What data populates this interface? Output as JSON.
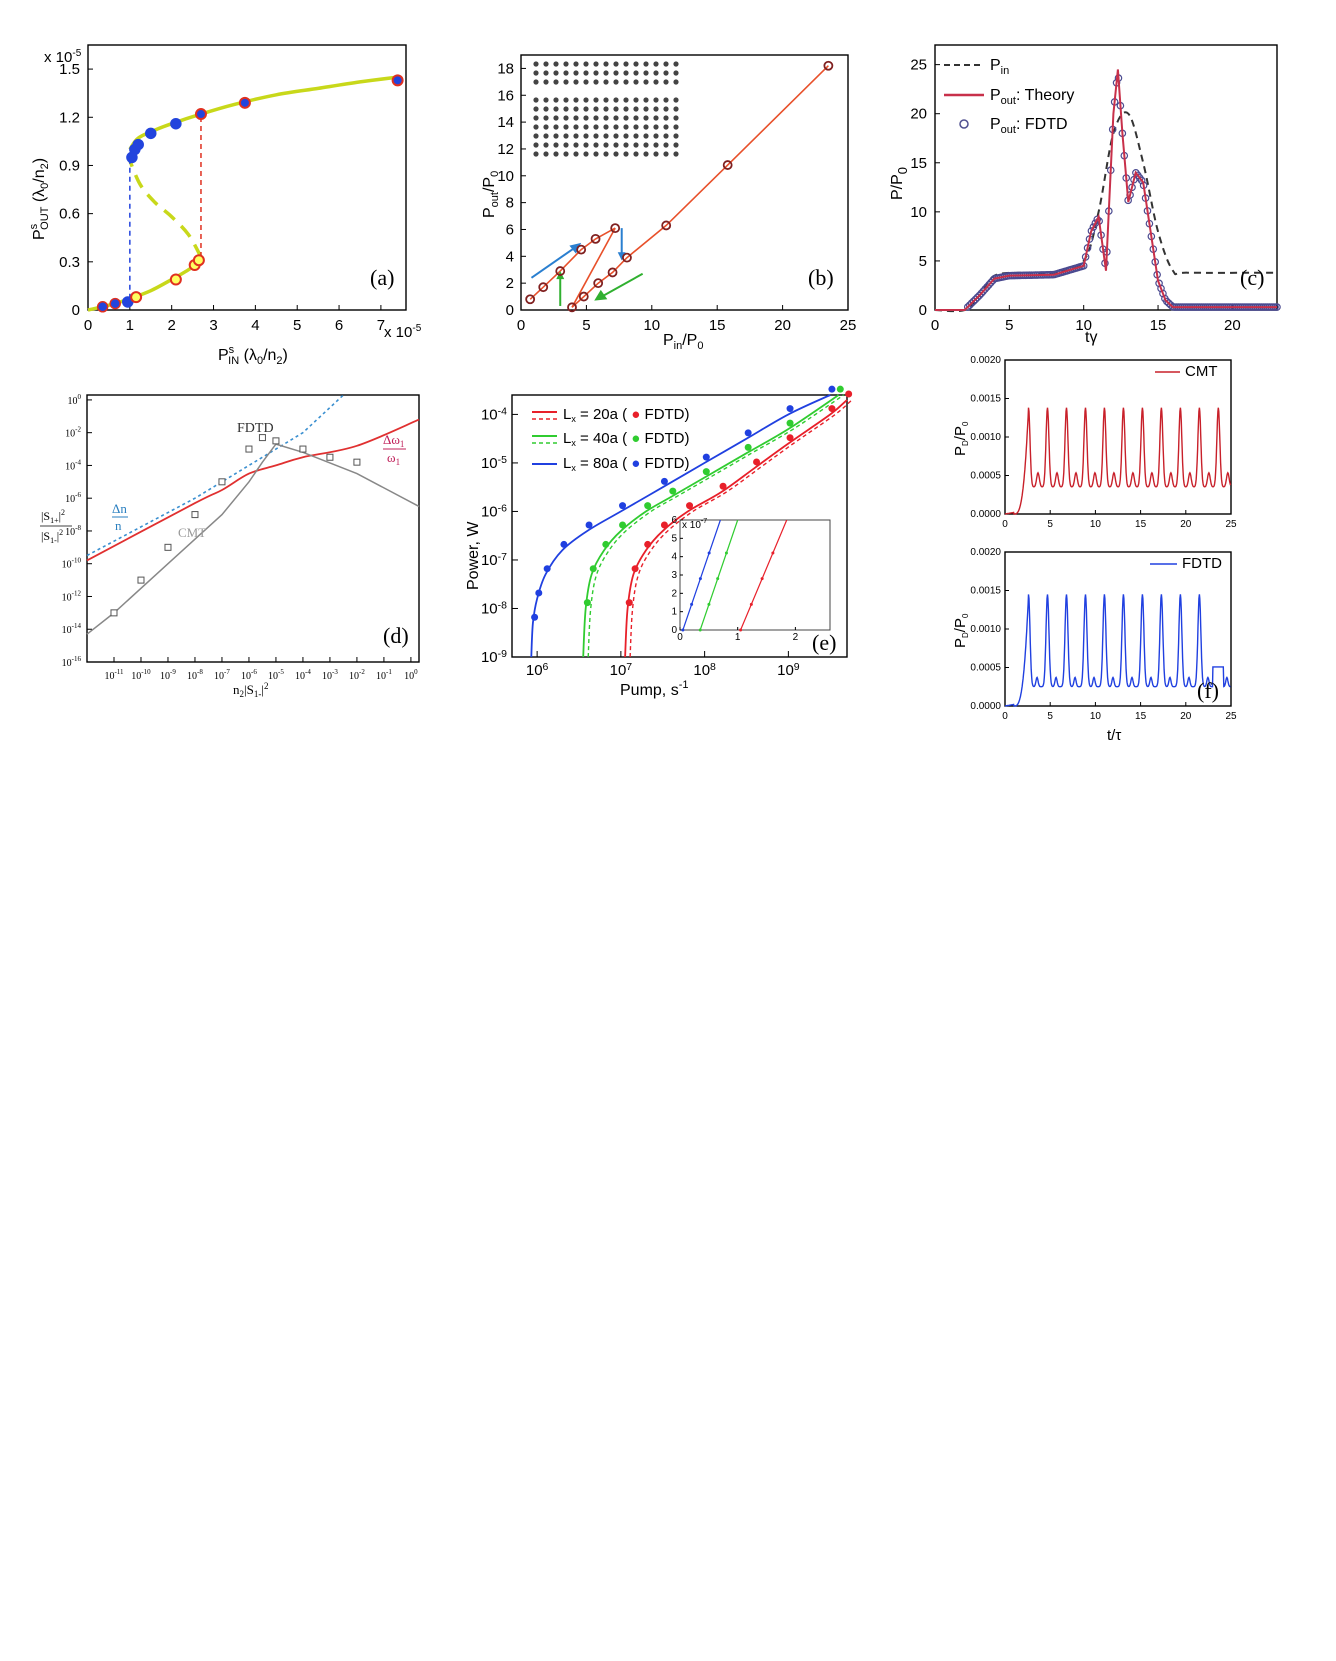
{
  "chart_data": [
    {
      "panel": "(a)",
      "type": "line",
      "xlabel": "P_IN^s (λ0/n2)",
      "ylabel": "P_OUT^s (λ0/n2)",
      "x_exponent": "x 10^-5",
      "y_exponent": "x 10^-5",
      "xlim": [
        0,
        7.6
      ],
      "ylim": [
        0,
        1.65
      ],
      "x_ticks": [
        "0",
        "1",
        "2",
        "3",
        "4",
        "5",
        "6",
        "7"
      ],
      "y_ticks": [
        "0",
        "0.3",
        "0.6",
        "0.9",
        "1.2",
        "1.5"
      ],
      "colors": {
        "curve": "#c8d81a",
        "up": "#2244dd",
        "down": "#e03020"
      },
      "series": [
        {
          "name": "stable lower branch",
          "x": [
            0,
            0.5,
            1.0,
            1.5,
            2.0,
            2.4,
            2.6,
            2.7
          ],
          "y": [
            0,
            0.03,
            0.07,
            0.12,
            0.19,
            0.25,
            0.29,
            0.33
          ]
        },
        {
          "name": "unstable branch (dashed)",
          "x": [
            2.7,
            2.4,
            2.0,
            1.6,
            1.25,
            1.0
          ],
          "y": [
            0.33,
            0.47,
            0.58,
            0.67,
            0.78,
            0.93
          ]
        },
        {
          "name": "stable upper branch",
          "x": [
            1.0,
            1.2,
            1.6,
            2.0,
            2.7,
            3.5,
            4.5,
            5.5,
            6.5,
            7.4
          ],
          "y": [
            1.0,
            1.07,
            1.12,
            1.16,
            1.22,
            1.28,
            1.34,
            1.38,
            1.42,
            1.45
          ]
        },
        {
          "name": "FDTD increasing (blue)",
          "x": [
            0.35,
            0.65,
            0.95,
            1.05,
            1.12,
            1.2,
            1.5,
            2.1
          ],
          "y": [
            0.02,
            0.04,
            0.05,
            0.95,
            1.0,
            1.03,
            1.1,
            1.16
          ]
        },
        {
          "name": "FDTD decreasing (red)",
          "x": [
            1.15,
            2.1,
            2.55,
            2.65,
            2.7,
            3.75,
            7.4
          ],
          "y": [
            0.08,
            0.19,
            0.28,
            0.31,
            1.22,
            1.29,
            1.43
          ]
        }
      ],
      "jumps": [
        {
          "x": 1.0,
          "from": 0.07,
          "to": 0.97,
          "color": "blue"
        },
        {
          "x": 2.7,
          "from": 0.33,
          "to": 1.22,
          "color": "red"
        }
      ]
    },
    {
      "panel": "(b)",
      "type": "line",
      "xlabel": "P_in/P_0",
      "ylabel": "P_out/P_0",
      "xlim": [
        0,
        25
      ],
      "ylim": [
        0,
        19
      ],
      "x_ticks": [
        "0",
        "5",
        "10",
        "15",
        "20",
        "25"
      ],
      "y_ticks": [
        "0",
        "2",
        "4",
        "6",
        "8",
        "10",
        "12",
        "14",
        "16",
        "18"
      ],
      "series": [
        {
          "name": "upper branch",
          "x": [
            0.7,
            1.7,
            3.0,
            4.6,
            5.7,
            7.2
          ],
          "y": [
            0.8,
            1.7,
            2.9,
            4.5,
            5.3,
            6.1
          ]
        },
        {
          "name": "lower branch",
          "x": [
            3.9,
            4.8,
            5.9,
            7.0,
            8.1,
            11.1,
            15.8,
            23.5
          ],
          "y": [
            0.2,
            1.0,
            2.0,
            2.8,
            3.9,
            6.3,
            10.8,
            18.2
          ]
        }
      ]
    },
    {
      "panel": "(c)",
      "type": "line",
      "xlabel": "tγ",
      "ylabel": "P/P_0",
      "xlim": [
        0,
        23
      ],
      "ylim": [
        0,
        27
      ],
      "x_ticks": [
        "0",
        "5",
        "10",
        "15",
        "20"
      ],
      "y_ticks": [
        "0",
        "5",
        "10",
        "15",
        "20",
        "25"
      ],
      "legend": [
        "P_in",
        "P_out: Theory",
        "P_out: FDTD"
      ],
      "series": [
        {
          "name": "P_in",
          "x": [
            0,
            2,
            3,
            4,
            6,
            8,
            10,
            11,
            12,
            13,
            14,
            15,
            16,
            17,
            23
          ],
          "y": [
            0,
            0,
            1.5,
            3.5,
            3.8,
            3.8,
            5,
            10,
            18,
            20,
            15,
            8,
            4,
            3.8,
            3.8
          ]
        },
        {
          "name": "P_out: Theory",
          "x": [
            0,
            2,
            3,
            4,
            5,
            8,
            10,
            10.5,
            11,
            11.5,
            12,
            12.3,
            12.6,
            13,
            13.5,
            14,
            14.5,
            15,
            15.5,
            16,
            23
          ],
          "y": [
            0,
            0,
            1.5,
            3.2,
            3.5,
            3.6,
            4.5,
            8,
            9.5,
            4,
            20,
            24.5,
            18,
            11,
            14,
            13,
            8,
            3,
            1,
            0.3,
            0.3
          ]
        }
      ]
    },
    {
      "panel": "(d)",
      "type": "line",
      "xlabel": "n2|S1-|^2",
      "ylabel": "|S1+|^2/|S1-|^2",
      "x_log_range": [
        -12,
        0.3
      ],
      "y_log_range": [
        -16,
        0.3
      ],
      "x_ticks": [
        "10^-11",
        "10^-10",
        "10^-9",
        "10^-8",
        "10^-7",
        "10^-6",
        "10^-5",
        "10^-4",
        "10^-3",
        "10^-2",
        "10^-1",
        "10^0"
      ],
      "y_ticks": [
        "10^-16",
        "10^-14",
        "10^-12",
        "10^-10",
        "10^-8",
        "10^-6",
        "10^-4",
        "10^-2",
        "10^0"
      ],
      "annotations": [
        "FDTD",
        "CMT",
        "Δn/n",
        "Δω1/ω1"
      ],
      "series": [
        {
          "name": "Δn/n (dotted)",
          "log_x": [
            -12,
            -8,
            -6,
            -4,
            -2.5
          ],
          "log_y": [
            -9.5,
            -6,
            -4,
            -2,
            0.3
          ]
        },
        {
          "name": "Δω1/ω1",
          "log_x": [
            -12,
            -8,
            -7,
            -6,
            -5,
            -4,
            -2,
            0.3
          ],
          "log_y": [
            -9.8,
            -6.3,
            -5.5,
            -4.5,
            -4,
            -3.5,
            -2.8,
            -1.2
          ]
        },
        {
          "name": "CMT",
          "log_x": [
            -12,
            -11,
            -9,
            -7,
            -6,
            -5.5,
            -5,
            -4,
            -2,
            0.3
          ],
          "log_y": [
            -14.3,
            -13,
            -10,
            -7,
            -5,
            -3.8,
            -2.7,
            -3.2,
            -4.5,
            -6.5
          ]
        },
        {
          "name": "FDTD",
          "log_x": [
            -11,
            -10,
            -9,
            -8,
            -7,
            -6,
            -5.5,
            -5,
            -4,
            -3,
            -2
          ],
          "log_y": [
            -13,
            -11,
            -9,
            -7,
            -5,
            -3,
            -2.3,
            -2.5,
            -3,
            -3.5,
            -3.8
          ]
        }
      ]
    },
    {
      "panel": "(e)",
      "type": "line",
      "xlabel": "Pump, s^-1",
      "ylabel": "Power, W",
      "x_log_range": [
        5.7,
        9.7
      ],
      "y_log_range": [
        -9,
        -3.6
      ],
      "x_ticks": [
        "10^6",
        "10^7",
        "10^8",
        "10^9"
      ],
      "y_ticks": [
        "10^-9",
        "10^-8",
        "10^-7",
        "10^-6",
        "10^-5",
        "10^-4"
      ],
      "legend": [
        "L_x = 20a ( FDTD)",
        "L_x = 40a ( FDTD)",
        "L_x = 80a ( FDTD)"
      ],
      "colors": {
        "20a": "#e8202a",
        "40a": "#30cc30",
        "80a": "#2040e0"
      },
      "series": [
        {
          "name": "80a",
          "log_x": [
            5.93,
            5.95,
            6.0,
            6.1,
            6.3,
            6.6,
            7.0,
            7.5,
            8.0,
            8.5,
            9.0,
            9.5
          ],
          "log_y": [
            -9,
            -8.3,
            -7.8,
            -7.3,
            -6.8,
            -6.4,
            -6.0,
            -5.5,
            -5.0,
            -4.5,
            -4.0,
            -3.6
          ]
        },
        {
          "name": "40a",
          "log_x": [
            6.55,
            6.58,
            6.65,
            6.8,
            7.0,
            7.3,
            7.6,
            8.0,
            8.5,
            9.0,
            9.6
          ],
          "log_y": [
            -9,
            -8,
            -7.3,
            -6.8,
            -6.4,
            -6.0,
            -5.7,
            -5.3,
            -4.8,
            -4.3,
            -3.6
          ]
        },
        {
          "name": "20a",
          "log_x": [
            7.05,
            7.08,
            7.15,
            7.3,
            7.5,
            7.8,
            8.2,
            8.6,
            9.0,
            9.5,
            9.7
          ],
          "log_y": [
            -9,
            -8,
            -7.3,
            -6.8,
            -6.4,
            -6.0,
            -5.6,
            -5.1,
            -4.6,
            -4.0,
            -3.7
          ]
        }
      ],
      "inset": {
        "x_ticks": [
          "0",
          "1",
          "2"
        ],
        "y_ticks": [
          "0",
          "1",
          "2",
          "3",
          "4",
          "5",
          "6"
        ],
        "y_exponent": "x 10^-7"
      }
    },
    {
      "panel": "(f) top",
      "type": "line",
      "xlabel": "",
      "ylabel": "P_D/P_0",
      "legend": [
        "CMT"
      ],
      "xlim": [
        0,
        25
      ],
      "ylim": [
        0,
        0.002
      ],
      "x_ticks": [
        "0",
        "5",
        "10",
        "15",
        "20",
        "25"
      ],
      "y_ticks": [
        "0.0000",
        "0.0005",
        "0.0010",
        "0.0015",
        "0.0020"
      ],
      "period": 2.1,
      "peak": 0.00138,
      "trough": 0.00035
    },
    {
      "panel": "(f)",
      "type": "line",
      "xlabel": "t/τ",
      "ylabel": "P_D/P_0",
      "legend": [
        "FDTD"
      ],
      "xlim": [
        0,
        25
      ],
      "ylim": [
        0,
        0.002
      ],
      "x_ticks": [
        "0",
        "5",
        "10",
        "15",
        "20",
        "25"
      ],
      "y_ticks": [
        "0.0000",
        "0.0005",
        "0.0010",
        "0.0015",
        "0.0020"
      ],
      "period": 2.1,
      "peak": 0.00145,
      "trough": 0.00025
    }
  ]
}
